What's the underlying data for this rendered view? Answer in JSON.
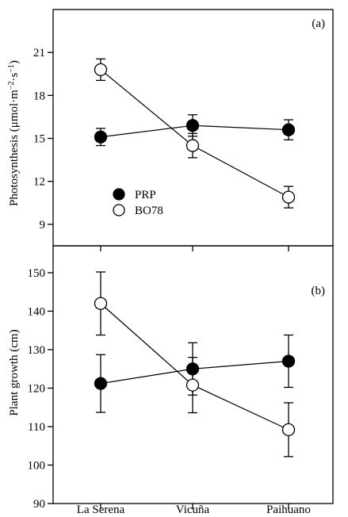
{
  "chart_data": [
    {
      "type": "line",
      "panel_label": "(a)",
      "ylabel": "Photosynthesis (μmol·m⁻²·s⁻¹)",
      "ylabel_parts": {
        "base": "Photosynthesis (μmol·m",
        "exp1": "−2",
        "mid": "·s",
        "exp2": "−1",
        "end": ")"
      },
      "categories": [
        "La Serena",
        "Vicuña",
        "Paihuano"
      ],
      "ylim": [
        7.5,
        24
      ],
      "yticks": [
        9,
        12,
        15,
        18,
        21
      ],
      "series": [
        {
          "name": "PRP",
          "marker": "filled",
          "values": [
            15.1,
            15.9,
            15.6
          ],
          "errors": [
            0.6,
            0.75,
            0.7
          ]
        },
        {
          "name": "BO78",
          "marker": "open",
          "values": [
            19.8,
            14.5,
            10.9
          ],
          "errors": [
            0.75,
            0.85,
            0.75
          ]
        }
      ],
      "legend": {
        "placement": "lower-left",
        "entries": [
          "PRP",
          "BO78"
        ]
      }
    },
    {
      "type": "line",
      "panel_label": "(b)",
      "ylabel": "Plant growth (cm)",
      "categories": [
        "La Serena",
        "Vicuña",
        "Paihuano"
      ],
      "ylim": [
        90,
        157
      ],
      "yticks": [
        90,
        100,
        110,
        120,
        130,
        140,
        150
      ],
      "series": [
        {
          "name": "PRP",
          "marker": "filled",
          "values": [
            121.2,
            125.0,
            127.0
          ],
          "errors": [
            7.5,
            6.8,
            6.8
          ]
        },
        {
          "name": "BO78",
          "marker": "open",
          "values": [
            142.0,
            120.8,
            109.2
          ],
          "errors": [
            8.2,
            7.2,
            7.0
          ]
        }
      ]
    }
  ],
  "colors": {
    "axis": "#000000",
    "filled_marker": "#000000",
    "open_marker": "#ffffff"
  }
}
